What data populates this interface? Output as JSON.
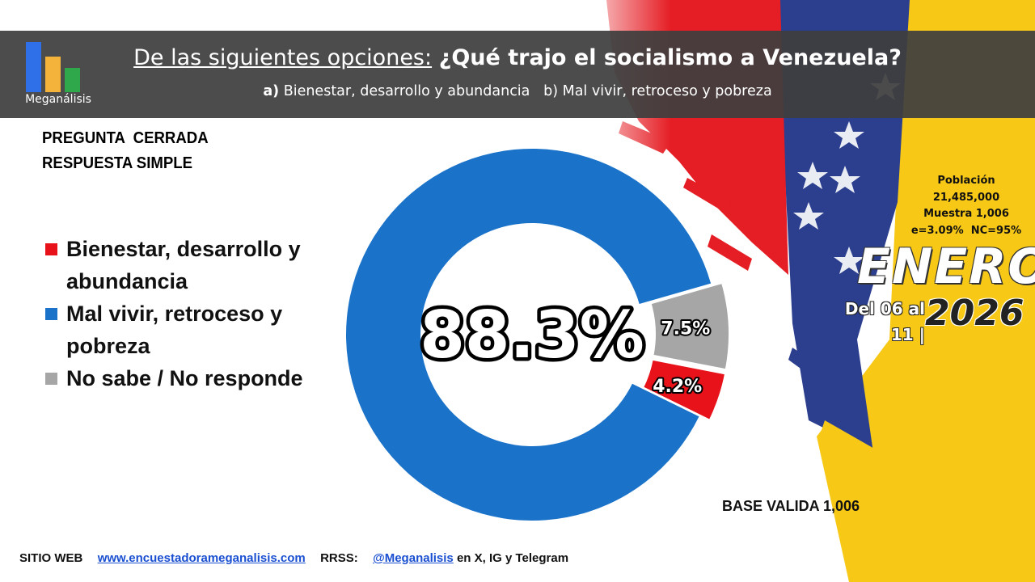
{
  "header": {
    "title_lead": "De las siguientes opciones:",
    "title_question": "¿Qué trajo el socialismo a Venezuela?",
    "option_a_tag": "a)",
    "option_a_text": "Bienestar, desarrollo y abundancia",
    "option_b_text": "b) Mal vivir, retroceso y pobreza"
  },
  "logo": {
    "text": "Meganálisis",
    "bar_colors": [
      "#2f6fe8",
      "#f4b43c",
      "#2ea84a"
    ]
  },
  "question_type": {
    "line1": "PREGUNTA  CERRADA",
    "line2": "RESPUESTA SIMPLE"
  },
  "legend": [
    {
      "label": "Bienestar, desarrollo y abundancia",
      "color": "#e8121a"
    },
    {
      "label": "Mal vivir, retroceso y pobreza",
      "color": "#1a72c9"
    },
    {
      "label": "No sabe / No responde",
      "color": "#a6a6a6"
    }
  ],
  "chart_data": {
    "type": "pie",
    "donut": true,
    "categories": [
      "Bienestar, desarrollo y abundancia",
      "Mal vivir, retroceso y pobreza",
      "No sabe / No responde"
    ],
    "values": [
      4.2,
      88.3,
      7.5
    ],
    "labels": [
      "4.2%",
      "88.3%",
      "7.5%"
    ],
    "colors": [
      "#e8121a",
      "#1a72c9",
      "#a6a6a6"
    ],
    "exploded": [
      "Bienestar, desarrollo y abundancia",
      "No sabe / No responde"
    ],
    "legend_position": "left"
  },
  "survey_info": {
    "population_label": "Población",
    "population_value": "21,485,000",
    "sample": "Muestra 1,006",
    "error": "e=3.09%  NC=95%"
  },
  "period": {
    "month": "ENERO",
    "range": "Del 06 al 11 |",
    "year": "2026"
  },
  "base_valid": "BASE VALIDA 1,006",
  "footer": {
    "web_label": "SITIO WEB",
    "web_url": "www.encuestadorameganalisis.com",
    "social_label": "RRSS:",
    "social_handle": "@Meganalisis",
    "social_suffix": "en X, IG y Telegram"
  }
}
